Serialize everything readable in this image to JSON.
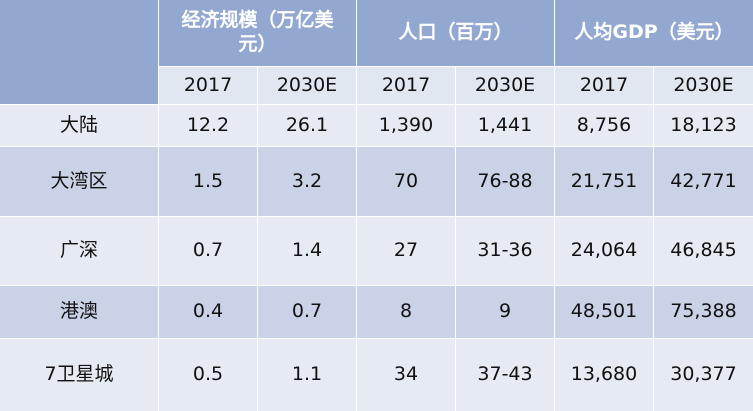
{
  "header": {
    "groups": [
      "经济规模（万亿美元）",
      "人口（百万）",
      "人均GDP（美元）"
    ],
    "years": [
      "2017",
      "2030E",
      "2017",
      "2030E",
      "2017",
      "2030E"
    ]
  },
  "rows": [
    {
      "label": "大陆",
      "cells": [
        "12.2",
        "26.1",
        "1,390",
        "1,441",
        "8,756",
        "18,123"
      ]
    },
    {
      "label": "大湾区",
      "cells": [
        "1.5",
        "3.2",
        "70",
        "76-88",
        "21,751",
        "42,771"
      ]
    },
    {
      "label": "广深",
      "cells": [
        "0.7",
        "1.4",
        "27",
        "31-36",
        "24,064",
        "46,845"
      ]
    },
    {
      "label": "港澳",
      "cells": [
        "0.4",
        "0.7",
        "8",
        "9",
        "48,501",
        "75,388"
      ]
    },
    {
      "label": "7卫星城",
      "cells": [
        "0.5",
        "1.1",
        "34",
        "37-43",
        "13,680",
        "30,377"
      ]
    }
  ],
  "colors": {
    "header": "#93a8d1",
    "row_light": "#e6eaf2",
    "row_dark": "#c9d2e6"
  }
}
